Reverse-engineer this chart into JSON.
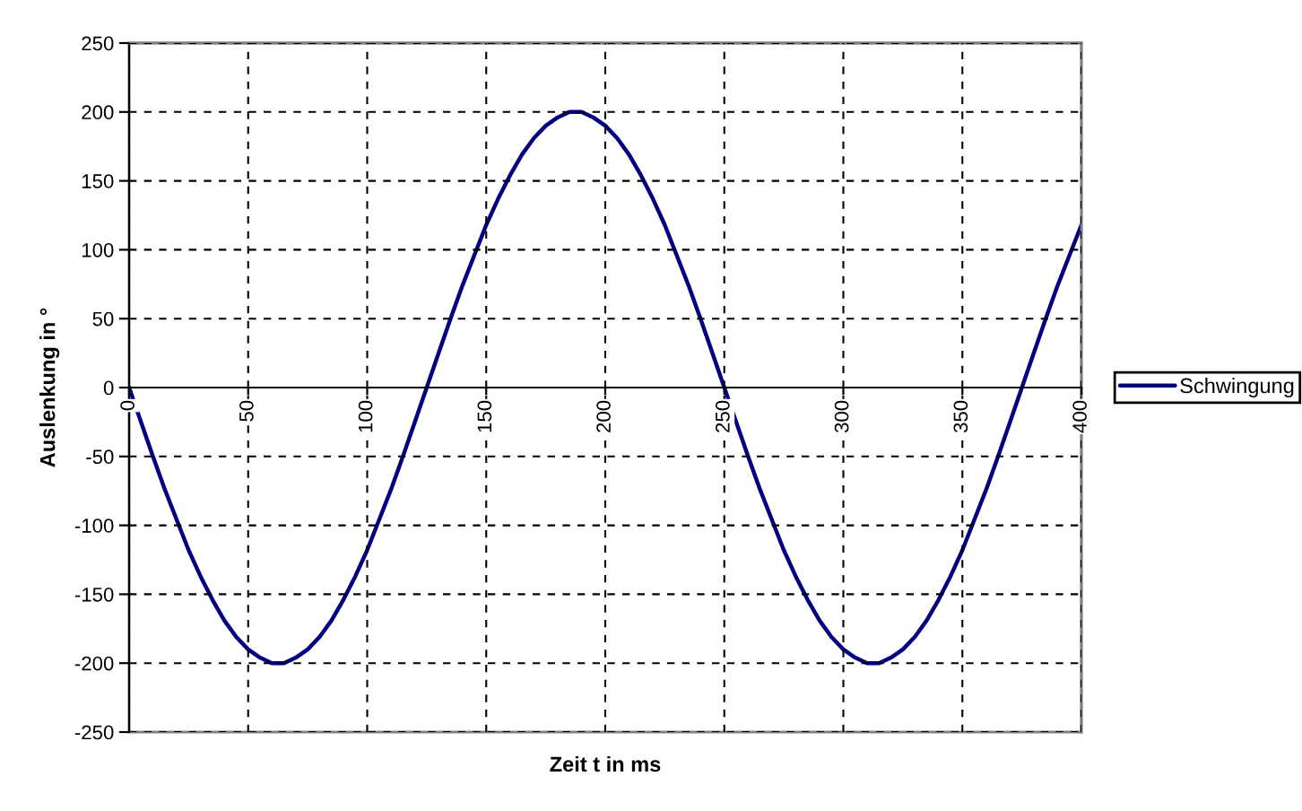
{
  "chart_data": {
    "type": "line",
    "xlabel": "Zeit t in ms",
    "ylabel": "Auslenkung in °",
    "x": [
      0,
      5,
      10,
      15,
      20,
      25,
      30,
      35,
      40,
      45,
      50,
      55,
      60,
      65,
      70,
      75,
      80,
      85,
      90,
      95,
      100,
      105,
      110,
      115,
      120,
      125,
      130,
      135,
      140,
      145,
      150,
      155,
      160,
      165,
      170,
      175,
      180,
      185,
      190,
      195,
      200,
      205,
      210,
      215,
      220,
      225,
      230,
      235,
      240,
      245,
      250,
      255,
      260,
      265,
      270,
      275,
      280,
      285,
      290,
      295,
      300,
      305,
      310,
      315,
      320,
      325,
      330,
      335,
      340,
      345,
      350,
      355,
      360,
      365,
      370,
      375,
      380,
      385,
      390,
      395,
      400
    ],
    "series": [
      {
        "name": "Schwingung",
        "color": "#000080",
        "values": [
          0,
          -25,
          -50,
          -74,
          -96,
          -118,
          -137,
          -154,
          -169,
          -181,
          -190,
          -196,
          -200,
          -200,
          -196,
          -190,
          -181,
          -169,
          -154,
          -137,
          -118,
          -96,
          -74,
          -50,
          -25,
          0,
          25,
          50,
          74,
          96,
          118,
          137,
          154,
          169,
          181,
          190,
          196,
          200,
          200,
          196,
          190,
          181,
          169,
          154,
          137,
          118,
          96,
          74,
          50,
          25,
          0,
          -25,
          -50,
          -74,
          -96,
          -118,
          -137,
          -154,
          -169,
          -181,
          -190,
          -196,
          -200,
          -200,
          -196,
          -190,
          -181,
          -169,
          -154,
          -137,
          -118,
          -96,
          -74,
          -50,
          -25,
          0,
          25,
          50,
          74,
          96,
          118
        ]
      }
    ],
    "xlim": [
      0,
      400
    ],
    "xticks": [
      0,
      50,
      100,
      150,
      200,
      250,
      300,
      350,
      400
    ],
    "ylim": [
      -250,
      250
    ],
    "yticks": [
      -250,
      -200,
      -150,
      -100,
      -50,
      0,
      50,
      100,
      150,
      200,
      250
    ],
    "grid": true,
    "legend": "right",
    "line_style": "solid"
  }
}
